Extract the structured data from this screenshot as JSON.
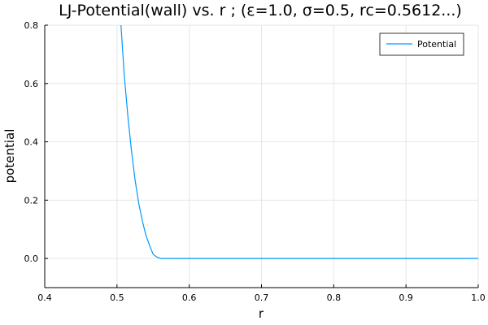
{
  "chart_data": {
    "type": "line",
    "title": "LJ-Potential(wall) vs. r ; (ε=1.0, σ=0.5, rc=0.5612...)",
    "xlabel": "r",
    "ylabel": "potential",
    "xlim": [
      0.4,
      1.0
    ],
    "ylim": [
      -0.1,
      0.8
    ],
    "xticks": [
      0.4,
      0.5,
      0.6,
      0.7,
      0.8,
      0.9,
      1.0
    ],
    "xtick_labels": [
      "0.4",
      "0.5",
      "0.6",
      "0.7",
      "0.8",
      "0.9",
      "1.0"
    ],
    "yticks": [
      0.0,
      0.2,
      0.4,
      0.6,
      0.8
    ],
    "ytick_labels": [
      "0.0",
      "0.2",
      "0.4",
      "0.6",
      "0.8"
    ],
    "grid": true,
    "legend_position": "top-right",
    "series": [
      {
        "name": "Potential",
        "color": "#009af9",
        "x": [
          0.5,
          0.505,
          0.51,
          0.515,
          0.52,
          0.525,
          0.53,
          0.535,
          0.54,
          0.545,
          0.55,
          0.555,
          0.56,
          0.5612,
          0.6,
          0.65,
          0.7,
          0.75,
          0.8,
          0.85,
          0.9,
          0.95,
          1.0
        ],
        "y": [
          1.0,
          0.82,
          0.63,
          0.49,
          0.37,
          0.27,
          0.19,
          0.13,
          0.08,
          0.045,
          0.015,
          0.005,
          0.0005,
          0.0,
          0.0,
          0.0,
          0.0,
          0.0,
          0.0,
          0.0,
          0.0,
          0.0,
          0.0
        ]
      }
    ]
  }
}
